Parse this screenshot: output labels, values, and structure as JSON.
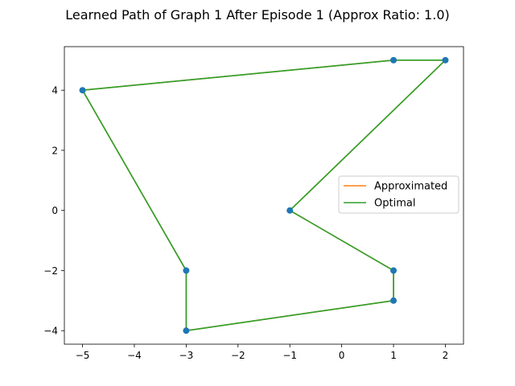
{
  "chart_data": {
    "type": "line",
    "title": "Learned Path of Graph 1 After Episode 1 (Approx Ratio: 1.0)",
    "xlabel": "",
    "ylabel": "",
    "xlim": [
      -5.35,
      2.35
    ],
    "ylim": [
      -4.45,
      5.45
    ],
    "xticks": [
      -5,
      -4,
      -3,
      -2,
      -1,
      0,
      1,
      2
    ],
    "yticks": [
      -4,
      -2,
      0,
      2,
      4
    ],
    "xtick_labels": [
      "−5",
      "−4",
      "−3",
      "−2",
      "−1",
      "0",
      "1",
      "2"
    ],
    "ytick_labels": [
      "−4",
      "−2",
      "0",
      "2",
      "4"
    ],
    "grid": false,
    "legend_position": "center-right",
    "points": {
      "x": [
        1,
        2,
        -1,
        1,
        1,
        -3,
        -3,
        -5
      ],
      "y": [
        5,
        5,
        0,
        -2,
        -3,
        -4,
        -2,
        4
      ],
      "color": "#1f77b4"
    },
    "series": [
      {
        "name": "Approximated",
        "color": "#ff7f0e",
        "x": [
          1,
          2,
          -1,
          1,
          1,
          -3,
          -3,
          -5,
          1
        ],
        "y": [
          5,
          5,
          0,
          -2,
          -3,
          -4,
          -2,
          4,
          5
        ]
      },
      {
        "name": "Optimal",
        "color": "#2ca02c",
        "x": [
          1,
          2,
          -1,
          1,
          1,
          -3,
          -3,
          -5,
          1
        ],
        "y": [
          5,
          5,
          0,
          -2,
          -3,
          -4,
          -2,
          4,
          5
        ]
      }
    ]
  }
}
